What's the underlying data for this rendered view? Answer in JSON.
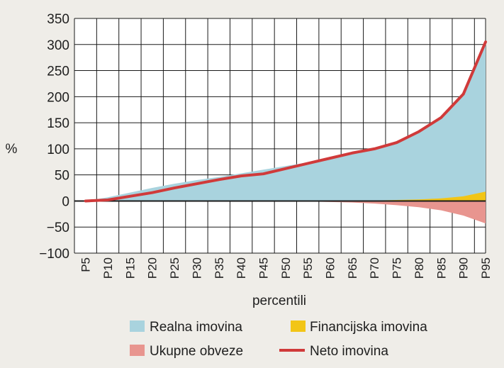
{
  "chart_data": {
    "type": "area",
    "xlabel": "percentili",
    "ylabel": "%",
    "ylim": [
      -100,
      350
    ],
    "yticks": [
      "350",
      "300",
      "250",
      "200",
      "150",
      "100",
      "50",
      "0",
      "−50",
      "−100"
    ],
    "categories": [
      "P5",
      "P10",
      "P15",
      "P20",
      "P25",
      "P30",
      "P35",
      "P40",
      "P45",
      "P50",
      "P55",
      "P60",
      "P65",
      "P70",
      "P75",
      "P80",
      "P85",
      "P90",
      "P95"
    ],
    "grid": true,
    "legend_position": "bottom",
    "series": [
      {
        "name": "Realna imovina",
        "type": "area",
        "color": "#a9d3de",
        "values": [
          0,
          7,
          16,
          25,
          33,
          40,
          46,
          53,
          60,
          67,
          74,
          82,
          90,
          100,
          115,
          135,
          162,
          205,
          305
        ]
      },
      {
        "name": "Financijska imovina",
        "type": "area",
        "color": "#f2c516",
        "values": [
          0,
          0,
          0,
          0,
          0,
          0,
          0,
          0,
          0,
          0,
          0,
          0,
          0.5,
          1,
          2,
          3,
          5,
          9,
          18
        ]
      },
      {
        "name": "Ukupne obveze",
        "type": "area",
        "color": "#e8958f",
        "values": [
          0,
          0,
          0,
          0,
          0,
          0,
          0,
          0,
          0,
          0,
          -1,
          -2,
          -3,
          -5,
          -8,
          -12,
          -18,
          -28,
          -43
        ]
      },
      {
        "name": "Neto imovina",
        "type": "line",
        "color": "#d03a3a",
        "values": [
          0,
          2,
          9,
          16,
          25,
          33,
          41,
          48,
          52,
          62,
          72,
          82,
          92,
          100,
          112,
          133,
          160,
          205,
          305
        ]
      }
    ]
  }
}
